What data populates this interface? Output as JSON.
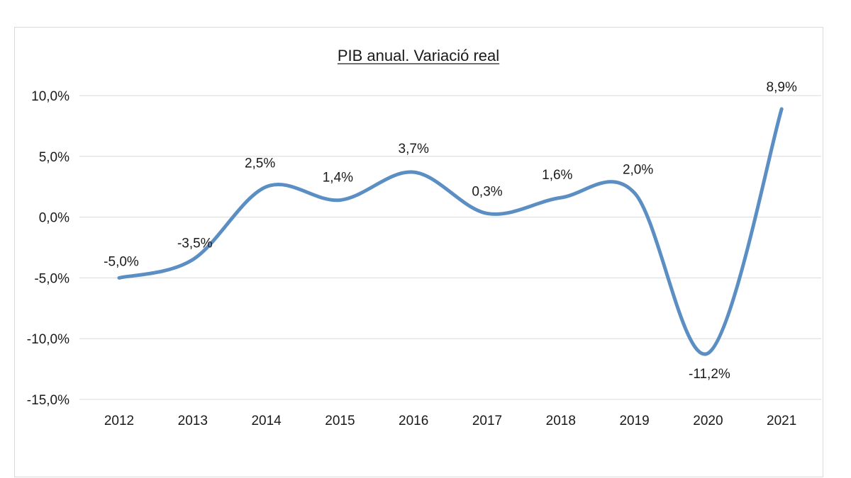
{
  "chart_data": {
    "type": "line",
    "title": "PIB anual. Variació real",
    "xlabel": "",
    "ylabel": "",
    "categories": [
      "2012",
      "2013",
      "2014",
      "2015",
      "2016",
      "2017",
      "2018",
      "2019",
      "2020",
      "2021"
    ],
    "series": [
      {
        "name": "PIB anual. Variació real",
        "values": [
          -5.0,
          -3.5,
          2.5,
          1.4,
          3.7,
          0.3,
          1.6,
          2.0,
          -11.2,
          8.9
        ],
        "labels": [
          "-5,0%",
          "-3,5%",
          "2,5%",
          "1,4%",
          "3,7%",
          "0,3%",
          "1,6%",
          "2,0%",
          "-11,2%",
          "8,9%"
        ],
        "color": "#5b8fc4"
      }
    ],
    "ylim": [
      -15,
      10
    ],
    "yticks": [
      10,
      5,
      0,
      -5,
      -10,
      -15
    ],
    "ytick_labels": [
      "10,0%",
      "5,0%",
      "0,0%",
      "-5,0%",
      "-10,0%",
      "-15,0%"
    ],
    "grid": true,
    "smooth": true,
    "legend": "none",
    "gridline_color": "#d9d9d9"
  }
}
